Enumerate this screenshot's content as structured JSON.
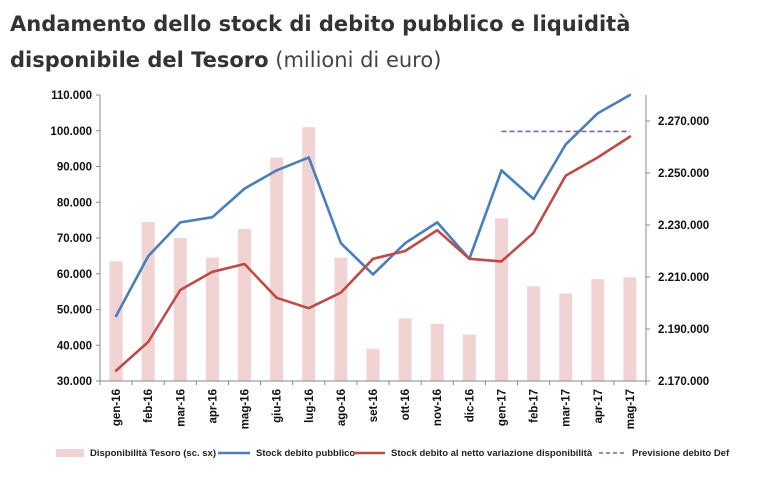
{
  "title": {
    "bold": "Andamento dello stock di debito pubblico e liquidità disponibile del Tesoro",
    "unit": "(milioni di euro)"
  },
  "chart_data": {
    "type": "bar+line",
    "categories": [
      "gen-16",
      "feb-16",
      "mar-16",
      "apr-16",
      "mag-16",
      "giu-16",
      "lug-16",
      "ago-16",
      "set-16",
      "ott-16",
      "nov-16",
      "dic-16",
      "gen-17",
      "feb-17",
      "mar-17",
      "apr-17",
      "mag-17"
    ],
    "left_axis": {
      "min": 30000,
      "max": 110000,
      "ticks": [
        "30.000",
        "40.000",
        "50.000",
        "60.000",
        "70.000",
        "80.000",
        "90.000",
        "100.000",
        "110.000"
      ]
    },
    "right_axis": {
      "min": 2170000,
      "max": 2280000,
      "ticks": [
        "2.170.000",
        "2.190.000",
        "2.210.000",
        "2.230.000",
        "2.250.000",
        "2.270.000"
      ]
    },
    "series": [
      {
        "name": "Disponibilità Tesoro (sc. sx)",
        "kind": "bar",
        "axis": "left",
        "color": "#f2d3d3",
        "values": [
          63500,
          74500,
          70000,
          64500,
          72500,
          92500,
          101000,
          64500,
          39000,
          47500,
          46000,
          43000,
          75500,
          56500,
          54500,
          58500,
          59000
        ]
      },
      {
        "name": "Stock debito pubblico",
        "kind": "line",
        "axis": "right",
        "color": "#4a7ebb",
        "values": [
          2195000,
          2218000,
          2231000,
          2233000,
          2244000,
          2251000,
          2256000,
          2223000,
          2211000,
          2223000,
          2231000,
          2217000,
          2251000,
          2240000,
          2261000,
          2273000,
          2280000
        ]
      },
      {
        "name": "Stock debito al netto variazione disponibilità",
        "kind": "line",
        "axis": "right",
        "color": "#be4b48",
        "values": [
          2174000,
          2185000,
          2205000,
          2212000,
          2215000,
          2202000,
          2198000,
          2204000,
          2217000,
          2220000,
          2228000,
          2217000,
          2216000,
          2227000,
          2249000,
          2256000,
          2264000
        ]
      },
      {
        "name": "Previsione debito Def",
        "kind": "dashed",
        "axis": "right",
        "color": "#7f5fa8",
        "from": "gen-17",
        "to": "mag-17",
        "value": 2266000
      }
    ],
    "grid": false,
    "legend": "bottom"
  }
}
